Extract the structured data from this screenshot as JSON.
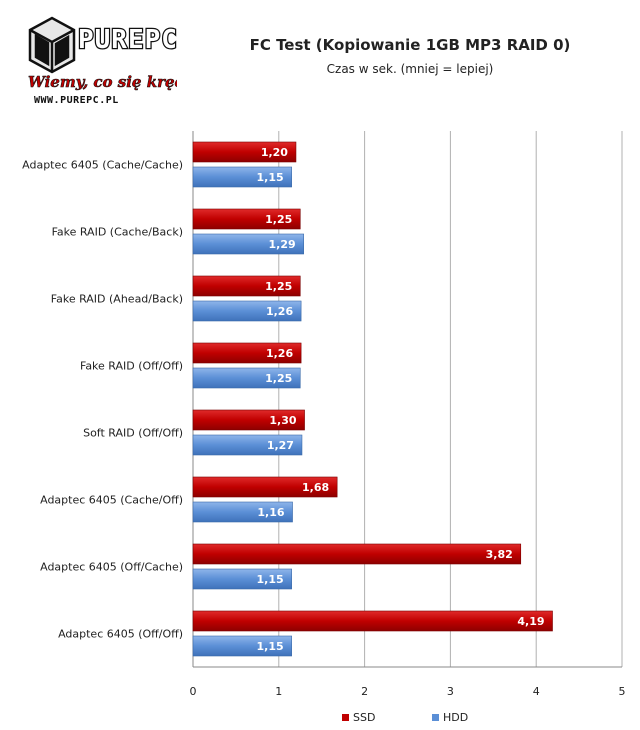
{
  "logo": {
    "brand": "PUREPC",
    "tagline": "Wiemy, co się kręci!",
    "url": "WWW.PUREPC.PL"
  },
  "chart_data": {
    "type": "bar",
    "orientation": "horizontal",
    "title": "FC Test (Kopiowanie 1GB MP3 RAID 0)",
    "subtitle": "Czas w sek. (mniej = lepiej)",
    "xlabel": "",
    "ylabel": "",
    "xlim": [
      0,
      5
    ],
    "xticks": [
      "0",
      "1",
      "2",
      "3",
      "4",
      "5"
    ],
    "grid": "vertical",
    "legend": "bottom",
    "categories": [
      "Adaptec 6405 (Cache/Cache)",
      "Fake RAID (Cache/Back)",
      "Fake RAID (Ahead/Back)",
      "Fake RAID (Off/Off)",
      "Soft RAID (Off/Off)",
      "Adaptec 6405 (Cache/Off)",
      "Adaptec 6405 (Off/Cache)",
      "Adaptec 6405 (Off/Off)"
    ],
    "series": [
      {
        "name": "SSD",
        "color": "#c00000",
        "values": [
          1.2,
          1.25,
          1.25,
          1.26,
          1.3,
          1.68,
          3.82,
          4.19
        ],
        "labels": [
          "1,20",
          "1,25",
          "1,25",
          "1,26",
          "1,30",
          "1,68",
          "3,82",
          "4,19"
        ]
      },
      {
        "name": "HDD",
        "color": "#5b8fd6",
        "values": [
          1.15,
          1.29,
          1.26,
          1.25,
          1.27,
          1.16,
          1.15,
          1.15
        ],
        "labels": [
          "1,15",
          "1,29",
          "1,26",
          "1,25",
          "1,27",
          "1,16",
          "1,15",
          "1,15"
        ]
      }
    ]
  }
}
